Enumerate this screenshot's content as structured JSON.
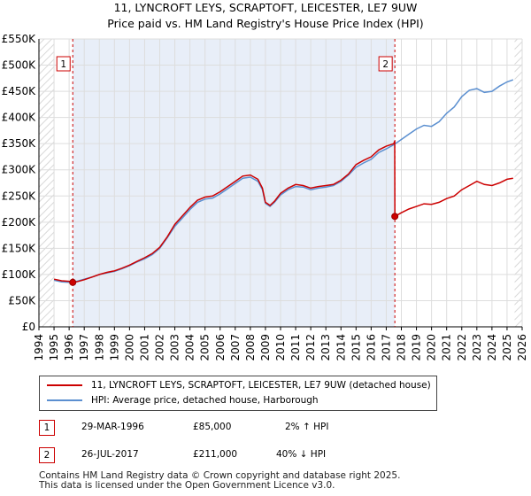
{
  "chart_data": {
    "type": "line",
    "title": "11, LYNCROFT LEYS, SCRAPTOFT, LEICESTER, LE7 9UW",
    "subtitle": "Price paid vs. HM Land Registry's House Price Index (HPI)",
    "xlim": [
      1994,
      2026
    ],
    "ylim": [
      0,
      550000
    ],
    "x_ticks": [
      "1994",
      "1995",
      "1996",
      "1997",
      "1998",
      "1999",
      "2000",
      "2001",
      "2002",
      "2003",
      "2004",
      "2005",
      "2006",
      "2007",
      "2008",
      "2009",
      "2010",
      "2011",
      "2012",
      "2013",
      "2014",
      "2015",
      "2016",
      "2017",
      "2018",
      "2019",
      "2020",
      "2021",
      "2022",
      "2023",
      "2024",
      "2025",
      "2026"
    ],
    "y_ticks": [
      {
        "value": 0,
        "label": "£0"
      },
      {
        "value": 50000,
        "label": "£50K"
      },
      {
        "value": 100000,
        "label": "£100K"
      },
      {
        "value": 150000,
        "label": "£150K"
      },
      {
        "value": 200000,
        "label": "£200K"
      },
      {
        "value": 250000,
        "label": "£250K"
      },
      {
        "value": 300000,
        "label": "£300K"
      },
      {
        "value": 350000,
        "label": "£350K"
      },
      {
        "value": 400000,
        "label": "£400K"
      },
      {
        "value": 450000,
        "label": "£450K"
      },
      {
        "value": 500000,
        "label": "£500K"
      },
      {
        "value": 550000,
        "label": "£550K"
      }
    ],
    "series": [
      {
        "name": "11, LYNCROFT LEYS, SCRAPTOFT, LEICESTER, LE7 9UW (detached house)",
        "color": "#cc0000",
        "points": [
          [
            1995.0,
            91000
          ],
          [
            1995.5,
            88000
          ],
          [
            1996.0,
            87000
          ],
          [
            1996.24,
            85000
          ],
          [
            1996.5,
            86000
          ],
          [
            1997.0,
            90000
          ],
          [
            1997.5,
            95000
          ],
          [
            1998.0,
            100000
          ],
          [
            1998.5,
            104000
          ],
          [
            1999.0,
            107000
          ],
          [
            1999.5,
            112000
          ],
          [
            2000.0,
            118000
          ],
          [
            2000.5,
            125000
          ],
          [
            2001.0,
            132000
          ],
          [
            2001.5,
            140000
          ],
          [
            2002.0,
            152000
          ],
          [
            2002.5,
            172000
          ],
          [
            2003.0,
            196000
          ],
          [
            2003.5,
            212000
          ],
          [
            2004.0,
            228000
          ],
          [
            2004.5,
            242000
          ],
          [
            2005.0,
            248000
          ],
          [
            2005.5,
            250000
          ],
          [
            2006.0,
            258000
          ],
          [
            2006.5,
            268000
          ],
          [
            2007.0,
            278000
          ],
          [
            2007.5,
            288000
          ],
          [
            2008.0,
            290000
          ],
          [
            2008.5,
            282000
          ],
          [
            2008.8,
            265000
          ],
          [
            2009.0,
            238000
          ],
          [
            2009.3,
            232000
          ],
          [
            2009.6,
            240000
          ],
          [
            2010.0,
            255000
          ],
          [
            2010.5,
            265000
          ],
          [
            2011.0,
            272000
          ],
          [
            2011.5,
            270000
          ],
          [
            2012.0,
            265000
          ],
          [
            2012.5,
            268000
          ],
          [
            2013.0,
            270000
          ],
          [
            2013.5,
            272000
          ],
          [
            2014.0,
            280000
          ],
          [
            2014.5,
            292000
          ],
          [
            2015.0,
            310000
          ],
          [
            2015.5,
            318000
          ],
          [
            2016.0,
            325000
          ],
          [
            2016.5,
            338000
          ],
          [
            2017.0,
            345000
          ],
          [
            2017.5,
            350000
          ],
          [
            2017.56,
            355000
          ],
          [
            2017.57,
            211000
          ],
          [
            2018.0,
            218000
          ],
          [
            2018.5,
            225000
          ],
          [
            2019.0,
            230000
          ],
          [
            2019.5,
            235000
          ],
          [
            2020.0,
            234000
          ],
          [
            2020.5,
            238000
          ],
          [
            2021.0,
            245000
          ],
          [
            2021.5,
            250000
          ],
          [
            2022.0,
            262000
          ],
          [
            2022.5,
            270000
          ],
          [
            2023.0,
            278000
          ],
          [
            2023.5,
            272000
          ],
          [
            2024.0,
            270000
          ],
          [
            2024.5,
            275000
          ],
          [
            2025.0,
            282000
          ],
          [
            2025.4,
            284000
          ]
        ]
      },
      {
        "name": "HPI: Average price, detached house, Harborough",
        "color": "#5b8fd0",
        "points": [
          [
            1995.0,
            89000
          ],
          [
            1995.5,
            86000
          ],
          [
            1996.0,
            85000
          ],
          [
            1996.5,
            87000
          ],
          [
            1997.0,
            91000
          ],
          [
            1997.5,
            95000
          ],
          [
            1998.0,
            100000
          ],
          [
            1998.5,
            103000
          ],
          [
            1999.0,
            106000
          ],
          [
            1999.5,
            111000
          ],
          [
            2000.0,
            117000
          ],
          [
            2000.5,
            124000
          ],
          [
            2001.0,
            130000
          ],
          [
            2001.5,
            138000
          ],
          [
            2002.0,
            150000
          ],
          [
            2002.5,
            170000
          ],
          [
            2003.0,
            192000
          ],
          [
            2003.5,
            208000
          ],
          [
            2004.0,
            224000
          ],
          [
            2004.5,
            238000
          ],
          [
            2005.0,
            244000
          ],
          [
            2005.5,
            246000
          ],
          [
            2006.0,
            254000
          ],
          [
            2006.5,
            264000
          ],
          [
            2007.0,
            274000
          ],
          [
            2007.5,
            284000
          ],
          [
            2008.0,
            286000
          ],
          [
            2008.5,
            278000
          ],
          [
            2008.8,
            262000
          ],
          [
            2009.0,
            236000
          ],
          [
            2009.3,
            230000
          ],
          [
            2009.6,
            238000
          ],
          [
            2010.0,
            252000
          ],
          [
            2010.5,
            262000
          ],
          [
            2011.0,
            268000
          ],
          [
            2011.5,
            267000
          ],
          [
            2012.0,
            262000
          ],
          [
            2012.5,
            265000
          ],
          [
            2013.0,
            267000
          ],
          [
            2013.5,
            270000
          ],
          [
            2014.0,
            278000
          ],
          [
            2014.5,
            290000
          ],
          [
            2015.0,
            305000
          ],
          [
            2015.5,
            313000
          ],
          [
            2016.0,
            320000
          ],
          [
            2016.5,
            333000
          ],
          [
            2017.0,
            340000
          ],
          [
            2017.5,
            348000
          ],
          [
            2018.0,
            358000
          ],
          [
            2018.5,
            368000
          ],
          [
            2019.0,
            378000
          ],
          [
            2019.5,
            385000
          ],
          [
            2020.0,
            383000
          ],
          [
            2020.5,
            392000
          ],
          [
            2021.0,
            408000
          ],
          [
            2021.5,
            420000
          ],
          [
            2022.0,
            440000
          ],
          [
            2022.5,
            452000
          ],
          [
            2023.0,
            455000
          ],
          [
            2023.5,
            448000
          ],
          [
            2024.0,
            450000
          ],
          [
            2024.5,
            460000
          ],
          [
            2025.0,
            468000
          ],
          [
            2025.4,
            472000
          ]
        ]
      }
    ],
    "sales": [
      {
        "id": "1",
        "x": 1996.24,
        "price": 85000
      },
      {
        "id": "2",
        "x": 2017.57,
        "price": 211000
      }
    ]
  },
  "legend": {
    "property_label": "11, LYNCROFT LEYS, SCRAPTOFT, LEICESTER, LE7 9UW (detached house)",
    "hpi_label": "HPI: Average price, detached house, Harborough"
  },
  "transactions": [
    {
      "id": "1",
      "date": "29-MAR-1996",
      "price": "£85,000",
      "hpi": "2% ↑ HPI"
    },
    {
      "id": "2",
      "date": "26-JUL-2017",
      "price": "£211,000",
      "hpi": "40% ↓ HPI"
    }
  ],
  "footer": {
    "line1": "Contains HM Land Registry data © Crown copyright and database right 2025.",
    "line2": "This data is licensed under the Open Government Licence v3.0."
  }
}
